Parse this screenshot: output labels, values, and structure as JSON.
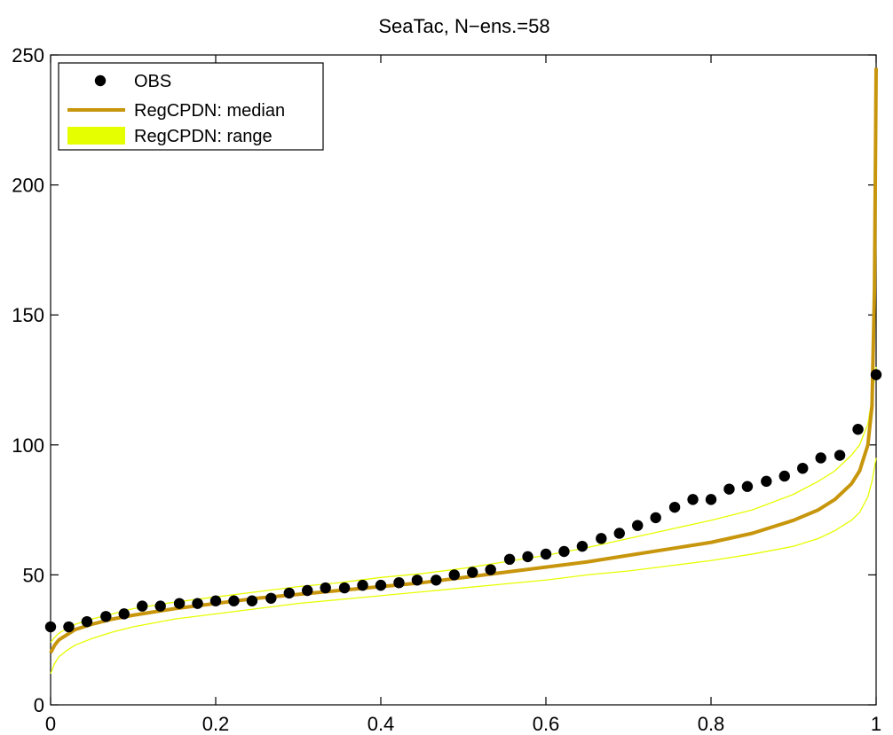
{
  "chart_data": {
    "type": "line",
    "title": "SeaTac, N−ens.=58",
    "xlabel": "",
    "ylabel": "",
    "xlim": [
      0,
      1
    ],
    "ylim": [
      0,
      250
    ],
    "x_ticks": [
      0,
      0.2,
      0.4,
      0.6,
      0.8,
      1
    ],
    "x_tick_labels": [
      "0",
      "0.2",
      "0.4",
      "0.6",
      "0.8",
      "1"
    ],
    "y_ticks": [
      0,
      50,
      100,
      150,
      200,
      250
    ],
    "y_tick_labels": [
      "0",
      "50",
      "100",
      "150",
      "200",
      "250"
    ],
    "grid": false,
    "legend_position": "top-left",
    "legend": [
      {
        "label": "OBS",
        "kind": "marker",
        "color": "#000000"
      },
      {
        "label": "RegCPDN: median",
        "kind": "line",
        "color": "#C8960C"
      },
      {
        "label": "RegCPDN: range",
        "kind": "band",
        "color": "#E6FF00"
      }
    ],
    "series": [
      {
        "name": "OBS",
        "style": "scatter",
        "color": "#000000",
        "x": [
          0.0,
          0.022,
          0.044,
          0.067,
          0.089,
          0.111,
          0.133,
          0.156,
          0.178,
          0.2,
          0.222,
          0.244,
          0.267,
          0.289,
          0.311,
          0.333,
          0.356,
          0.378,
          0.4,
          0.422,
          0.444,
          0.467,
          0.489,
          0.511,
          0.533,
          0.556,
          0.578,
          0.6,
          0.622,
          0.644,
          0.667,
          0.689,
          0.711,
          0.733,
          0.756,
          0.778,
          0.8,
          0.822,
          0.844,
          0.867,
          0.889,
          0.911,
          0.933,
          0.956,
          0.978,
          1.0
        ],
        "y": [
          30,
          30,
          32,
          34,
          35,
          38,
          38,
          39,
          39,
          40,
          40,
          40,
          41,
          43,
          44,
          45,
          45,
          46,
          46,
          47,
          48,
          48,
          50,
          51,
          52,
          56,
          57,
          58,
          59,
          61,
          64,
          66,
          69,
          72,
          76,
          79,
          79,
          83,
          84,
          86,
          88,
          91,
          95,
          96,
          106,
          127
        ]
      },
      {
        "name": "RegCPDN: median",
        "style": "line",
        "color": "#C8960C",
        "x": [
          0.0,
          0.005,
          0.01,
          0.02,
          0.03,
          0.05,
          0.075,
          0.1,
          0.15,
          0.2,
          0.25,
          0.3,
          0.35,
          0.4,
          0.45,
          0.5,
          0.55,
          0.6,
          0.65,
          0.7,
          0.75,
          0.8,
          0.85,
          0.9,
          0.93,
          0.95,
          0.97,
          0.98,
          0.99,
          0.995,
          0.998,
          1.0
        ],
        "y": [
          20,
          23,
          25,
          27,
          29,
          31,
          33,
          34.5,
          37,
          39,
          41,
          42.5,
          44,
          45.5,
          47,
          49,
          51,
          53,
          55,
          57.5,
          60,
          62.5,
          66,
          71,
          75,
          79,
          85,
          90,
          100,
          115,
          160,
          245
        ]
      },
      {
        "name": "RegCPDN: range upper",
        "style": "thin-line",
        "color": "#E6FF00",
        "x": [
          0.0,
          0.005,
          0.01,
          0.02,
          0.03,
          0.05,
          0.075,
          0.1,
          0.15,
          0.2,
          0.25,
          0.3,
          0.35,
          0.4,
          0.45,
          0.5,
          0.55,
          0.6,
          0.65,
          0.7,
          0.75,
          0.8,
          0.85,
          0.9,
          0.93,
          0.95,
          0.97,
          0.98,
          0.99,
          0.995,
          1.0
        ],
        "y": [
          24,
          26,
          27.5,
          29.5,
          31,
          33,
          35,
          37,
          39.5,
          41.5,
          43.5,
          45.5,
          47,
          49,
          50.5,
          52.5,
          55,
          57.5,
          60.5,
          64,
          67.5,
          71,
          75,
          81,
          86,
          90,
          96,
          100,
          108,
          118,
          130
        ]
      },
      {
        "name": "RegCPDN: range lower",
        "style": "thin-line",
        "color": "#E6FF00",
        "x": [
          0.0,
          0.005,
          0.01,
          0.02,
          0.03,
          0.05,
          0.075,
          0.1,
          0.15,
          0.2,
          0.25,
          0.3,
          0.35,
          0.4,
          0.45,
          0.5,
          0.55,
          0.6,
          0.65,
          0.7,
          0.75,
          0.8,
          0.85,
          0.9,
          0.93,
          0.95,
          0.97,
          0.98,
          0.99,
          0.995,
          1.0
        ],
        "y": [
          12,
          16,
          18.5,
          21,
          23,
          25.5,
          28,
          30,
          33,
          35,
          37,
          39,
          40.5,
          42,
          43.5,
          45,
          46.5,
          48,
          50,
          51.5,
          53.5,
          55.5,
          58,
          61,
          64,
          67,
          71,
          74,
          80,
          86,
          95
        ]
      }
    ]
  }
}
